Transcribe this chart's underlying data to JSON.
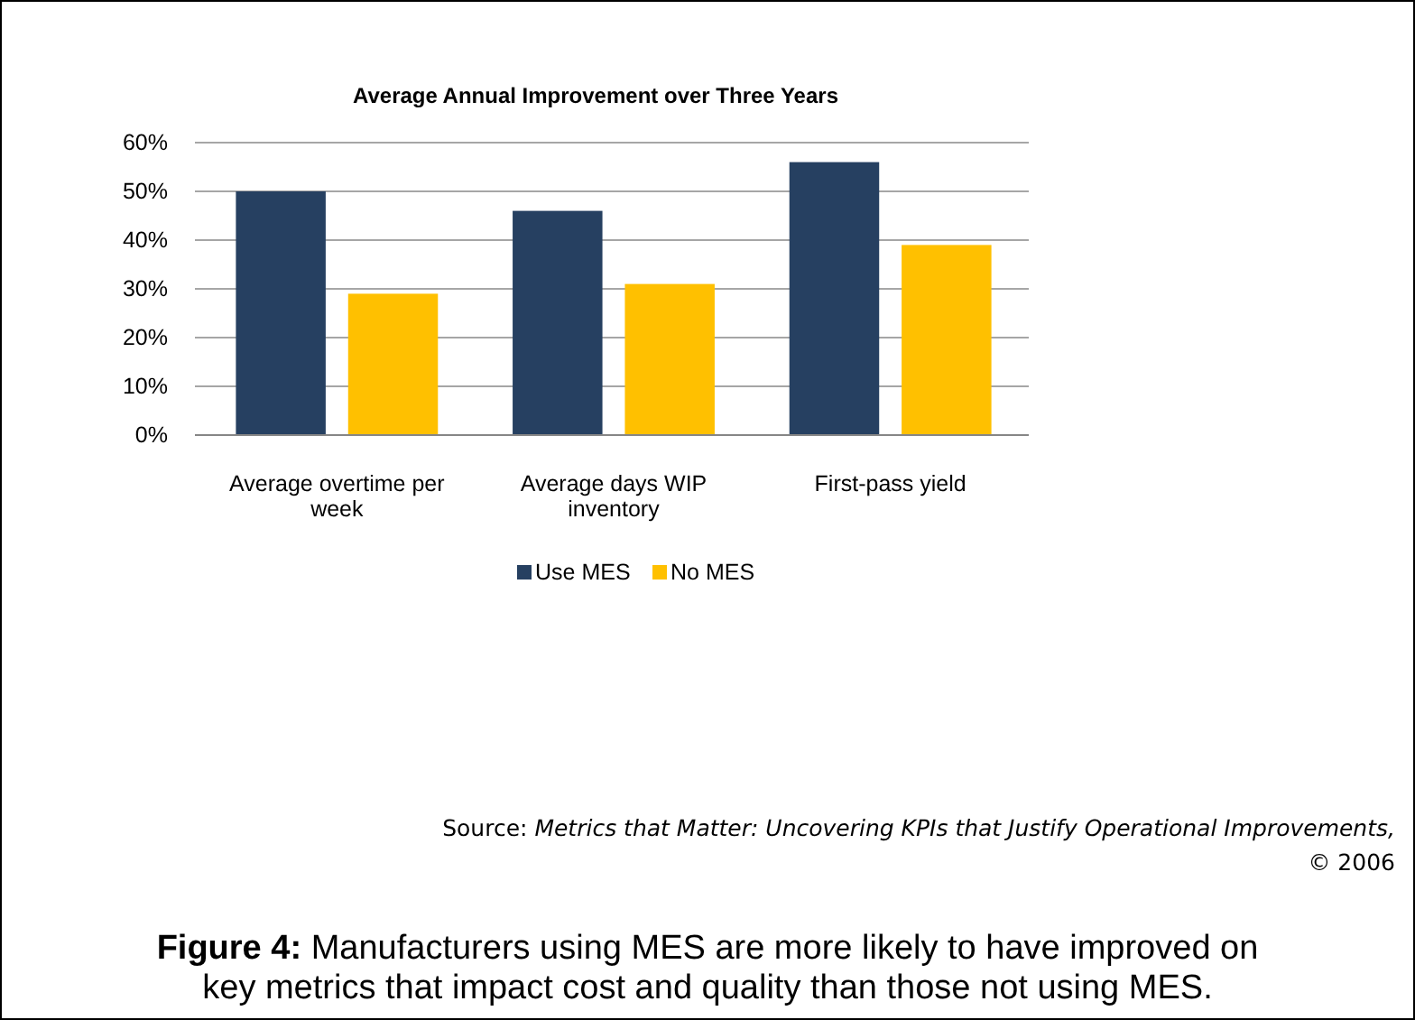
{
  "chart_data": {
    "type": "bar",
    "title": "Average Annual Improvement over Three Years",
    "categories": [
      "Average overtime per week",
      "Average days WIP inventory",
      "First-pass yield"
    ],
    "series": [
      {
        "name": "Use MES",
        "color": "#264061",
        "values": [
          50,
          46,
          56
        ]
      },
      {
        "name": "No MES",
        "color": "#ffc000",
        "values": [
          29,
          31,
          39
        ]
      }
    ],
    "ylim": [
      0,
      60
    ],
    "yticks": [
      {
        "value": 0,
        "label": "0%"
      },
      {
        "value": 10,
        "label": "10%"
      },
      {
        "value": 20,
        "label": "20%"
      },
      {
        "value": 30,
        "label": "30%"
      },
      {
        "value": 40,
        "label": "40%"
      },
      {
        "value": 50,
        "label": "50%"
      },
      {
        "value": 60,
        "label": "60%"
      }
    ],
    "grid": "y",
    "legend": "bottom",
    "annotations": [
      "Source: Metrics that Matter: Uncovering KPIs that Justify Operational Improvements,",
      "© 2006",
      "Figure 4: Manufacturers using MES are more likely to have improved on key metrics that impact cost and quality than those not using MES."
    ]
  }
}
